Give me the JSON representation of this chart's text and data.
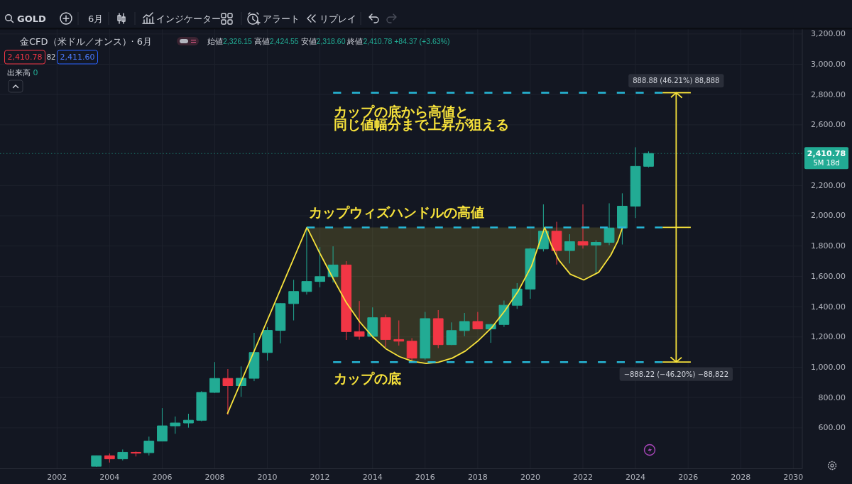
{
  "chart_data": {
    "type": "candlestick",
    "title": "金CFD（米ドル／オンス）· 6月",
    "subtitle": "始値2,326.15 高値2,424.55 安値2,318.60 終値2,410.78 +84.37 (+3.63%)",
    "annotations": [
      "GOLD",
      "6月",
      "インジケーター",
      "アラート",
      "リプレイ",
      "2,410.78",
      "82",
      "2,411.60",
      "出来高 0",
      "カップの底から高値と",
      "同じ値幅分まで上昇が狙える",
      "カップウィズハンドルの高値",
      "カップの底",
      {
        "text": "888.88 (46.21%) 88,888",
        "x": "2025-07-19",
        "y": 2812
      },
      {
        "text": "−888.22 (−46.20%) −88,822",
        "x": "2025-07-19",
        "y": 1034
      }
    ],
    "x": [
      "2003-07",
      "2004-01",
      "2004-07",
      "2005-01",
      "2005-07",
      "2006-01",
      "2006-07",
      "2007-01",
      "2007-07",
      "2008-01",
      "2008-07",
      "2009-01",
      "2009-07",
      "2010-01",
      "2010-07",
      "2011-01",
      "2011-07",
      "2012-01",
      "2012-07",
      "2013-01",
      "2013-07",
      "2014-01",
      "2014-07",
      "2015-01",
      "2015-07",
      "2016-01",
      "2016-07",
      "2017-01",
      "2017-07",
      "2018-01",
      "2018-07",
      "2019-01",
      "2019-07",
      "2020-01",
      "2020-07",
      "2021-01",
      "2021-07",
      "2022-01",
      "2022-07",
      "2023-01",
      "2023-07",
      "2024-01",
      "2024-07"
    ],
    "ohlc": [
      [
        346,
        417,
        342,
        416
      ],
      [
        416,
        431,
        371,
        395
      ],
      [
        395,
        457,
        385,
        438
      ],
      [
        438,
        444,
        411,
        436
      ],
      [
        436,
        542,
        418,
        513
      ],
      [
        513,
        730,
        512,
        613
      ],
      [
        613,
        675,
        561,
        632
      ],
      [
        632,
        693,
        601,
        650
      ],
      [
        650,
        842,
        643,
        834
      ],
      [
        834,
        1034,
        830,
        926
      ],
      [
        926,
        988,
        685,
        878
      ],
      [
        878,
        1005,
        805,
        927
      ],
      [
        927,
        1227,
        908,
        1097
      ],
      [
        1097,
        1265,
        1044,
        1243
      ],
      [
        1243,
        1424,
        1158,
        1420
      ],
      [
        1420,
        1577,
        1309,
        1500
      ],
      [
        1500,
        1921,
        1480,
        1566
      ],
      [
        1566,
        1793,
        1528,
        1598
      ],
      [
        1598,
        1798,
        1560,
        1675
      ],
      [
        1675,
        1700,
        1180,
        1235
      ],
      [
        1235,
        1437,
        1182,
        1204
      ],
      [
        1204,
        1395,
        1195,
        1327
      ],
      [
        1327,
        1347,
        1133,
        1183
      ],
      [
        1183,
        1309,
        1143,
        1172
      ],
      [
        1172,
        1192,
        1045,
        1060
      ],
      [
        1060,
        1365,
        1050,
        1321
      ],
      [
        1321,
        1377,
        1126,
        1149
      ],
      [
        1149,
        1296,
        1146,
        1242
      ],
      [
        1242,
        1358,
        1205,
        1302
      ],
      [
        1302,
        1365,
        1252,
        1253
      ],
      [
        1253,
        1287,
        1161,
        1282
      ],
      [
        1282,
        1440,
        1266,
        1409
      ],
      [
        1409,
        1555,
        1385,
        1516
      ],
      [
        1516,
        1788,
        1452,
        1781
      ],
      [
        1781,
        2075,
        1764,
        1898
      ],
      [
        1898,
        1960,
        1678,
        1770
      ],
      [
        1770,
        1878,
        1685,
        1829
      ],
      [
        1829,
        2075,
        1783,
        1807
      ],
      [
        1807,
        1838,
        1615,
        1824
      ],
      [
        1824,
        2082,
        1806,
        1919
      ],
      [
        1919,
        2148,
        1810,
        2063
      ],
      [
        2063,
        2452,
        1985,
        2326
      ],
      [
        2326.15,
        2424.55,
        2318.6,
        2410.78
      ]
    ],
    "colors": [
      "#22ab94",
      "#f23645",
      "#22ab94",
      "#f23645",
      "#22ab94",
      "#22ab94",
      "#22ab94",
      "#22ab94",
      "#22ab94",
      "#22ab94",
      "#f23645",
      "#22ab94",
      "#22ab94",
      "#22ab94",
      "#22ab94",
      "#22ab94",
      "#22ab94",
      "#22ab94",
      "#22ab94",
      "#f23645",
      "#f23645",
      "#22ab94",
      "#f23645",
      "#f23645",
      "#f23645",
      "#22ab94",
      "#f23645",
      "#22ab94",
      "#22ab94",
      "#f23645",
      "#22ab94",
      "#22ab94",
      "#22ab94",
      "#22ab94",
      "#22ab94",
      "#f23645",
      "#22ab94",
      "#f23645",
      "#22ab94",
      "#22ab94",
      "#22ab94",
      "#22ab94",
      "#22ab94"
    ],
    "series": [
      {
        "type": "line",
        "color": "#f7e23b",
        "line_style": "solid",
        "x": [
          "2008-06-24",
          "2011-07-05",
          "2012-01-04",
          "2012-07-05",
          "2013-01-01",
          "2013-07-02",
          "2014-01-04",
          "2014-07-05",
          "2015-01-08",
          "2015-07-09",
          "2016-01-15",
          "2016-07-05",
          "2017-01-12",
          "2017-07-13",
          "2018-01-12",
          "2018-07-16",
          "2019-01-12",
          "2019-07-20",
          "2020-01-19",
          "2020-07-19",
          "2020-10-16",
          "2021-01-30",
          "2021-07-09",
          "2022-01-12",
          "2022-08-08",
          "2023-01-23",
          "2023-05-01",
          "2023-07-05"
        ],
        "values": [
          692,
          1923,
          1748,
          1583,
          1427,
          1302,
          1200,
          1122,
          1070,
          1039,
          1025,
          1033,
          1060,
          1107,
          1177,
          1263,
          1372,
          1505,
          1669,
          1923,
          1810,
          1708,
          1614,
          1576,
          1627,
          1740,
          1833,
          1923
        ],
        "lower": [
          null,
          1923,
          1748,
          1583,
          1427,
          1302,
          1200,
          1122,
          1070,
          1039,
          1025,
          1033,
          1060,
          1107,
          1177,
          1263,
          1372,
          1505,
          1669,
          1923,
          1810,
          1708,
          1614,
          1576,
          1627,
          1740,
          1833,
          1923
        ],
        "upper": [
          null,
          1923,
          1923,
          1923,
          1923,
          1923,
          1923,
          1923,
          1923,
          1923,
          1923,
          1923,
          1923,
          1923,
          1923,
          1923,
          1923,
          1923,
          1923,
          1923,
          1923,
          1923,
          1923,
          1923,
          1923,
          1923,
          1923,
          1923
        ]
      },
      {
        "type": "line",
        "color": "#26b7d6",
        "line_style": "dashed",
        "x": [
          "2011-07-05",
          "2025-01-12"
        ],
        "values": [
          1923,
          1923
        ]
      },
      {
        "type": "line",
        "color": "#26b7d6",
        "line_style": "dashed",
        "x": [
          "2012-07-02",
          "2025-01-12"
        ],
        "values": [
          2812,
          2812
        ]
      },
      {
        "type": "line",
        "color": "#26b7d6",
        "line_style": "dashed",
        "x": [
          "2012-07-02",
          "2025-01-12"
        ],
        "values": [
          1034,
          1034
        ]
      },
      {
        "type": "line",
        "color": "#f7e23b",
        "line_style": "solid",
        "x": [
          "2025-01-12",
          "2026-02-07"
        ],
        "values": [
          2812,
          2812
        ]
      },
      {
        "type": "line",
        "color": "#f7e23b",
        "line_style": "solid",
        "x": [
          "2025-01-12",
          "2026-02-07"
        ],
        "values": [
          1923,
          1923
        ]
      },
      {
        "type": "line",
        "color": "#f7e23b",
        "line_style": "solid",
        "x": [
          "2025-01-12",
          "2026-02-07"
        ],
        "values": [
          1034,
          1034
        ]
      },
      {
        "type": "line",
        "color": "#f7e23b",
        "line_style": "solid",
        "x": [
          "2025-05-08",
          "2025-07-19",
          "2025-10-03",
          "2025-07-19",
          "2025-07-19",
          "2025-05-08",
          "2025-07-19",
          "2025-10-03"
        ],
        "values": [
          2781,
          2812,
          2781,
          2812,
          1034,
          1065,
          1034,
          1065
        ]
      }
    ],
    "ref_lines": [
      {
        "axis": "y",
        "value": 2410.78,
        "label": "2,410.78\n5M 18d",
        "color": "#22ab94",
        "line_style": "dotted"
      }
    ],
    "xlim": [
      "1999-11-01",
      "2030-05-06"
    ],
    "ylim": [
      330,
      3230
    ],
    "xticks": [
      "2002",
      "2004",
      "2006",
      "2008",
      "2010",
      "2012",
      "2014",
      "2016",
      "2018",
      "2020",
      "2022",
      "2024",
      "2026",
      "2028",
      "2030"
    ],
    "yticks": [
      {
        "value": 600,
        "label": "600.00"
      },
      {
        "value": 800,
        "label": "800.00"
      },
      {
        "value": 1000,
        "label": "1,000.00"
      },
      {
        "value": 1200,
        "label": "1,200.00"
      },
      {
        "value": 1400,
        "label": "1,400.00"
      },
      {
        "value": 1600,
        "label": "1,600.00"
      },
      {
        "value": 1800,
        "label": "1,800.00"
      },
      {
        "value": 2000,
        "label": "2,000.00"
      },
      {
        "value": 2200,
        "label": "2,200.00"
      },
      {
        "value": 2600,
        "label": "2,600.00"
      },
      {
        "value": 2800,
        "label": "2,800.00"
      },
      {
        "value": 3000,
        "label": "3,000.00"
      },
      {
        "value": 3200,
        "label": "3,200.00"
      }
    ],
    "grid": true
  }
}
